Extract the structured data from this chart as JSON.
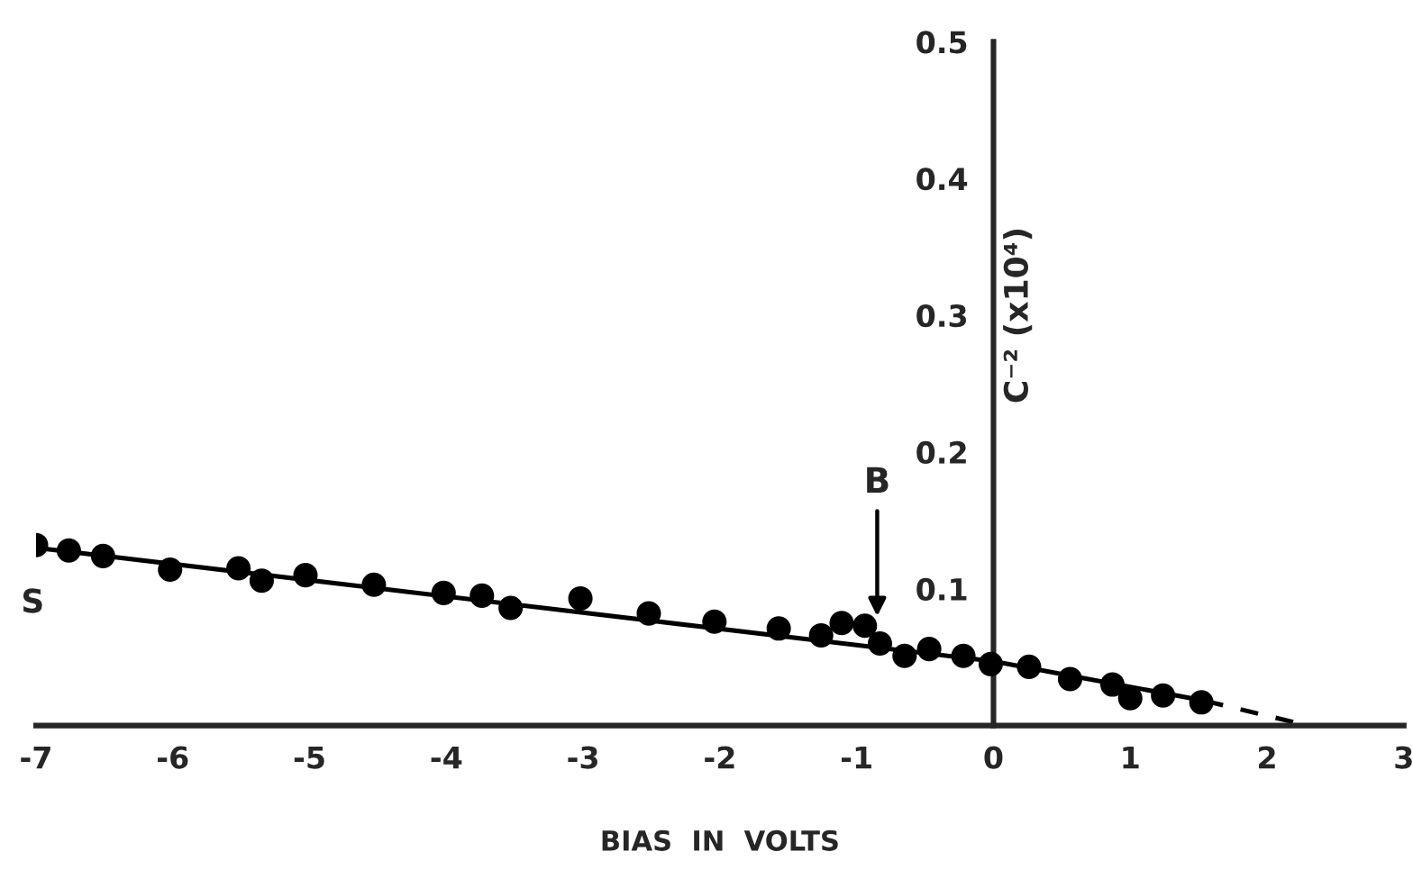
{
  "chart_data": {
    "type": "scatter",
    "xlabel": "BIAS  IN  VOLTS",
    "ylabel": "C⁻² (x10⁴)",
    "xlim": [
      -7,
      3
    ],
    "ylim": [
      0,
      0.5
    ],
    "xticks": [
      -7,
      -6,
      -5,
      -4,
      -3,
      -2,
      -1,
      0,
      1,
      2,
      3
    ],
    "yticks": [
      0.1,
      0.2,
      0.3,
      0.4,
      0.5
    ],
    "grid": false,
    "legend": false,
    "series": [
      {
        "color": "#000000",
        "marker": "circle",
        "x": [
          -7.0,
          -6.76,
          -6.51,
          -6.02,
          -5.52,
          -5.35,
          -5.03,
          -4.53,
          -4.02,
          -3.74,
          -3.53,
          -3.02,
          -2.52,
          -2.04,
          -1.57,
          -1.26,
          -1.11,
          -0.94,
          -0.83,
          -0.65,
          -0.47,
          -0.22,
          -0.02,
          0.26,
          0.56,
          0.87,
          1.0,
          1.24,
          1.52
        ],
        "values": [
          0.132,
          0.128,
          0.124,
          0.114,
          0.115,
          0.106,
          0.11,
          0.103,
          0.097,
          0.095,
          0.086,
          0.093,
          0.082,
          0.076,
          0.071,
          0.066,
          0.075,
          0.073,
          0.06,
          0.051,
          0.056,
          0.051,
          0.045,
          0.043,
          0.034,
          0.03,
          0.02,
          0.022,
          0.017
        ]
      },
      {
        "type": "line",
        "color": "#000000",
        "line_style": "solid",
        "marker": "none",
        "x": [
          -7.0,
          0.0,
          1.55
        ],
        "values": [
          0.13,
          0.047,
          0.018
        ]
      },
      {
        "type": "line",
        "color": "#000000",
        "line_style": "dashed",
        "marker": "none",
        "x": [
          1.55,
          2.3
        ],
        "values": [
          0.018,
          0.0
        ]
      }
    ],
    "annotations": [
      {
        "text": "S",
        "x": -7.0,
        "y": 0.13
      },
      {
        "text": "B",
        "x": -0.85,
        "y": 0.08
      }
    ]
  }
}
